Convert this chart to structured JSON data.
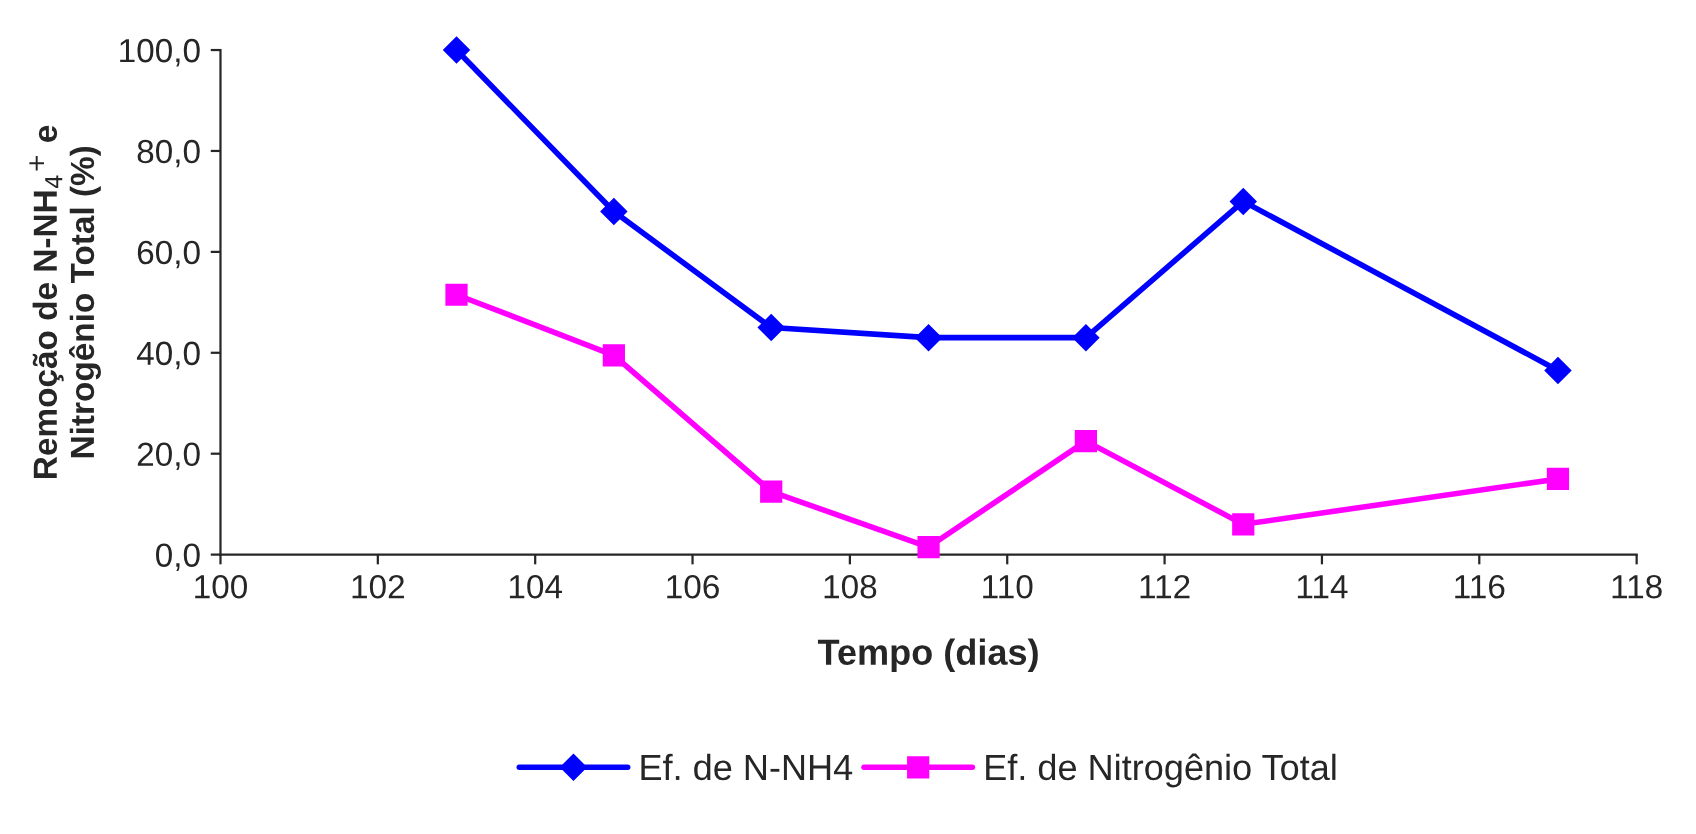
{
  "chart_data": {
    "type": "line",
    "xlabel": "Tempo (dias)",
    "ylabel": "Remoção de N-NH$_{4}$$^{+}$ e\nNitrogênio Total (%)",
    "x": [
      103,
      105,
      107,
      109,
      111,
      113,
      117
    ],
    "series": [
      {
        "name": "Ef. de N-NH4",
        "color": "#0000ff",
        "marker": "diamond",
        "values": [
          100,
          68,
          45,
          43,
          43,
          70,
          36.5
        ]
      },
      {
        "name": "Ef. de Nitrogênio Total",
        "color": "#ff00ff",
        "marker": "square",
        "values": [
          51.5,
          39.5,
          12.5,
          1.5,
          22.5,
          6,
          15
        ]
      }
    ],
    "xlim": [
      100,
      118
    ],
    "xticks": [
      100,
      102,
      104,
      106,
      108,
      110,
      112,
      114,
      116,
      118
    ],
    "ylim": [
      0,
      100
    ],
    "yticks": [
      {
        "value": 0,
        "label": "0,0"
      },
      {
        "value": 20,
        "label": "20,0"
      },
      {
        "value": 40,
        "label": "40,0"
      },
      {
        "value": 60,
        "label": "60,0"
      },
      {
        "value": 80,
        "label": "80,0"
      },
      {
        "value": 100,
        "label": "100,0"
      }
    ],
    "grid": false,
    "legend": "bottom"
  }
}
